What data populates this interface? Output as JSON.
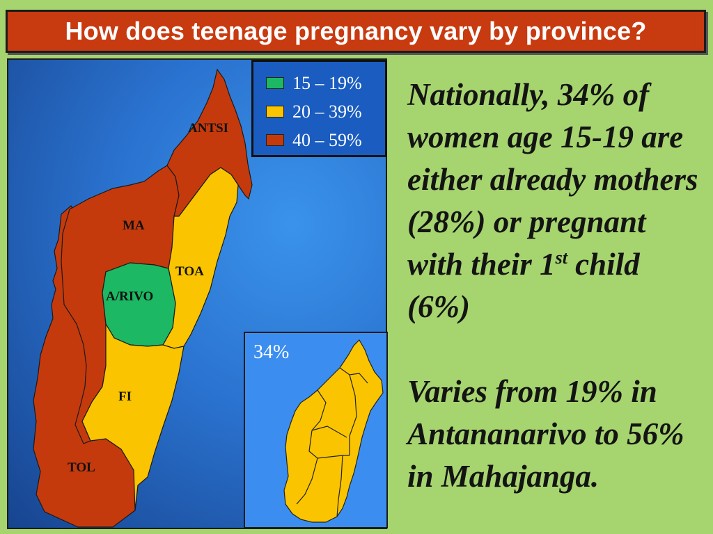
{
  "title": "How does teenage pregnancy vary by province?",
  "colors": {
    "background": "#a6d46e",
    "title_bg": "#c83a10",
    "sea": "#2a72cf",
    "range_15_19": "#1cb863",
    "range_20_39": "#fac400",
    "range_40_59": "#c43a0c"
  },
  "legend": [
    {
      "label": "15 – 19%",
      "color": "#1cb863"
    },
    {
      "label": "20 – 39%",
      "color": "#fac400"
    },
    {
      "label": "40 – 59%",
      "color": "#c43a0c"
    }
  ],
  "provinces": [
    {
      "name": "ANTSI",
      "range": "40 – 59%"
    },
    {
      "name": "MA",
      "range": "40 – 59%"
    },
    {
      "name": "TOA",
      "range": "20 – 39%"
    },
    {
      "name": "A/RIVO",
      "range": "15 – 19%"
    },
    {
      "name": "FI",
      "range": "20 – 39%"
    },
    {
      "name": "TOL",
      "range": "40 – 59%"
    }
  ],
  "inset": {
    "label": "34%",
    "color": "#fac400"
  },
  "notes": {
    "p1_main": "Nationally, 34% of women age 15-19 are either already mothers (28%) or pregnant with their 1",
    "p1_sup": "st",
    "p1_end": " child (6%)",
    "p2": "Varies from 19% in Antananarivo to 56% in Mahajanga."
  }
}
